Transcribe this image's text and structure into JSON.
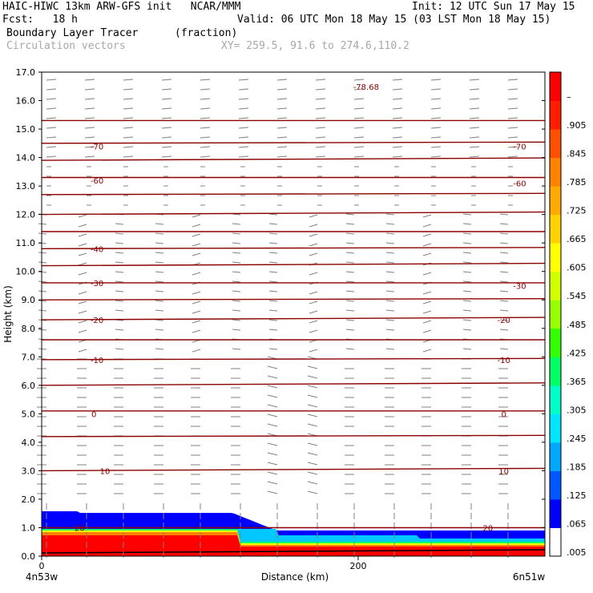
{
  "header": {
    "model_title": "HAIC-HIWC 13km ARW-GFS init   NCAR/MMM",
    "init": "Init: 12 UTC Sun 17 May 15",
    "forecast": "Fcst:   18 h",
    "valid": "Valid: 06 UTC Mon 18 May 15 (03 LST Mon 18 May 15)",
    "field_name": "Boundary Layer Tracer",
    "field_units": "(fraction)",
    "vector_field": "Circulation vectors",
    "cross_section": "XY= 259.5, 91.6 to 274.6,110.2"
  },
  "chart_data": {
    "type": "heatmap",
    "ylabel": "Height (km)",
    "xlabel": "Distance (km)",
    "x_start_label": "4n53w",
    "x_end_label": "6n51w",
    "ylim": [
      0,
      17
    ],
    "xlim": [
      0,
      318
    ],
    "yticks": [
      "0.0",
      "1.0",
      "2.0",
      "3.0",
      "4.0",
      "5.0",
      "6.0",
      "7.0",
      "8.0",
      "9.0",
      "10.0",
      "11.0",
      "12.0",
      "13.0",
      "14.0",
      "15.0",
      "16.0",
      "17.0"
    ],
    "xticks": [
      {
        "value": 0,
        "label": "0"
      },
      {
        "value": 200,
        "label": "200"
      }
    ],
    "colorbar_labels": [
      ".005",
      ".065",
      ".125",
      ".185",
      ".245",
      ".305",
      ".365",
      ".425",
      ".485",
      ".545",
      ".605",
      ".665",
      ".725",
      ".785",
      ".845",
      ".905",
      "–"
    ],
    "colorbar_colors": [
      "#ffffff",
      "#0000ff",
      "#0058ff",
      "#00a8ff",
      "#00e6ff",
      "#00ffc8",
      "#00ff64",
      "#32ff00",
      "#96ff00",
      "#d2ff00",
      "#ffff00",
      "#ffd200",
      "#ffaa00",
      "#ff8200",
      "#ff5000",
      "#ff1e00",
      "#ff0000"
    ],
    "temperature_labels": [
      {
        "label": "-78.68",
        "x": 205,
        "y": 16.5
      },
      {
        "label": "-70",
        "x": 35,
        "y": 14.4
      },
      {
        "label": "-70",
        "x": 302,
        "y": 14.4
      },
      {
        "label": "-60",
        "x": 35,
        "y": 13.2
      },
      {
        "label": "-60",
        "x": 302,
        "y": 13.1
      },
      {
        "label": "-40",
        "x": 35,
        "y": 10.8
      },
      {
        "label": "-30",
        "x": 35,
        "y": 9.6
      },
      {
        "label": "-30",
        "x": 302,
        "y": 9.5
      },
      {
        "label": "-20",
        "x": 35,
        "y": 8.3
      },
      {
        "label": "-20",
        "x": 292,
        "y": 8.3
      },
      {
        "label": "-10",
        "x": 35,
        "y": 6.9
      },
      {
        "label": "-10",
        "x": 292,
        "y": 6.9
      },
      {
        "label": "0",
        "x": 33,
        "y": 5.0
      },
      {
        "label": "0",
        "x": 292,
        "y": 5.0
      },
      {
        "label": "10",
        "x": 40,
        "y": 3.0
      },
      {
        "label": "10",
        "x": 292,
        "y": 3.0
      },
      {
        "label": "20",
        "x": 24,
        "y": 1.0
      },
      {
        "label": "20",
        "x": 282,
        "y": 1.0
      }
    ],
    "contour_heights": [
      15.3,
      14.5,
      13.9,
      13.3,
      12.7,
      12.0,
      11.4,
      10.8,
      10.2,
      9.6,
      9.0,
      8.3,
      7.6,
      6.9,
      6.0,
      5.1,
      4.2,
      3.0,
      1.0
    ]
  }
}
